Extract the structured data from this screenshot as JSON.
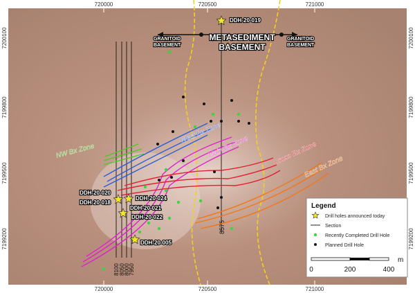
{
  "axes": {
    "top": [
      "720000",
      "720500",
      "721000"
    ],
    "bottom": [
      "720000",
      "720500",
      "721000"
    ],
    "left": [
      "7200100",
      "7199800",
      "7199500",
      "7199200"
    ],
    "right": [
      "7200100",
      "7199800",
      "7199500",
      "7199200"
    ]
  },
  "basement_labels": [
    [
      "GRANITOID",
      "BASEMENT"
    ],
    [
      "METASEDIMENT",
      "BASEMENT"
    ],
    [
      "GRANITOID",
      "BASEMENT"
    ]
  ],
  "zones": [
    {
      "name": "NW Bx Zone",
      "color": "#4cc82a"
    },
    {
      "name": "West Bx Zone",
      "color": "#2a5ed8"
    },
    {
      "name": "Main Bx Zone",
      "color": "#e020d0"
    },
    {
      "name": "Cross Bx Zone",
      "color": "#e02030"
    },
    {
      "name": "East Bx Zone",
      "color": "#f07818"
    }
  ],
  "drill_holes": [
    "DDH-20-019",
    "DDH-20-020",
    "DDH-20-018",
    "DDH-20-024",
    "DDH-20-021",
    "DDH-20-022",
    "DDH-20-005"
  ],
  "sections": [
    "8100",
    "8050",
    "8000",
    "7950",
    "8575"
  ],
  "legend": {
    "title": "Legend",
    "items": [
      "Drill holes announced today",
      "Section",
      "Recently Completed Drill Hole",
      "Planned Drill Hole"
    ],
    "scale": [
      "0",
      "200",
      "400"
    ],
    "unit": "m"
  }
}
